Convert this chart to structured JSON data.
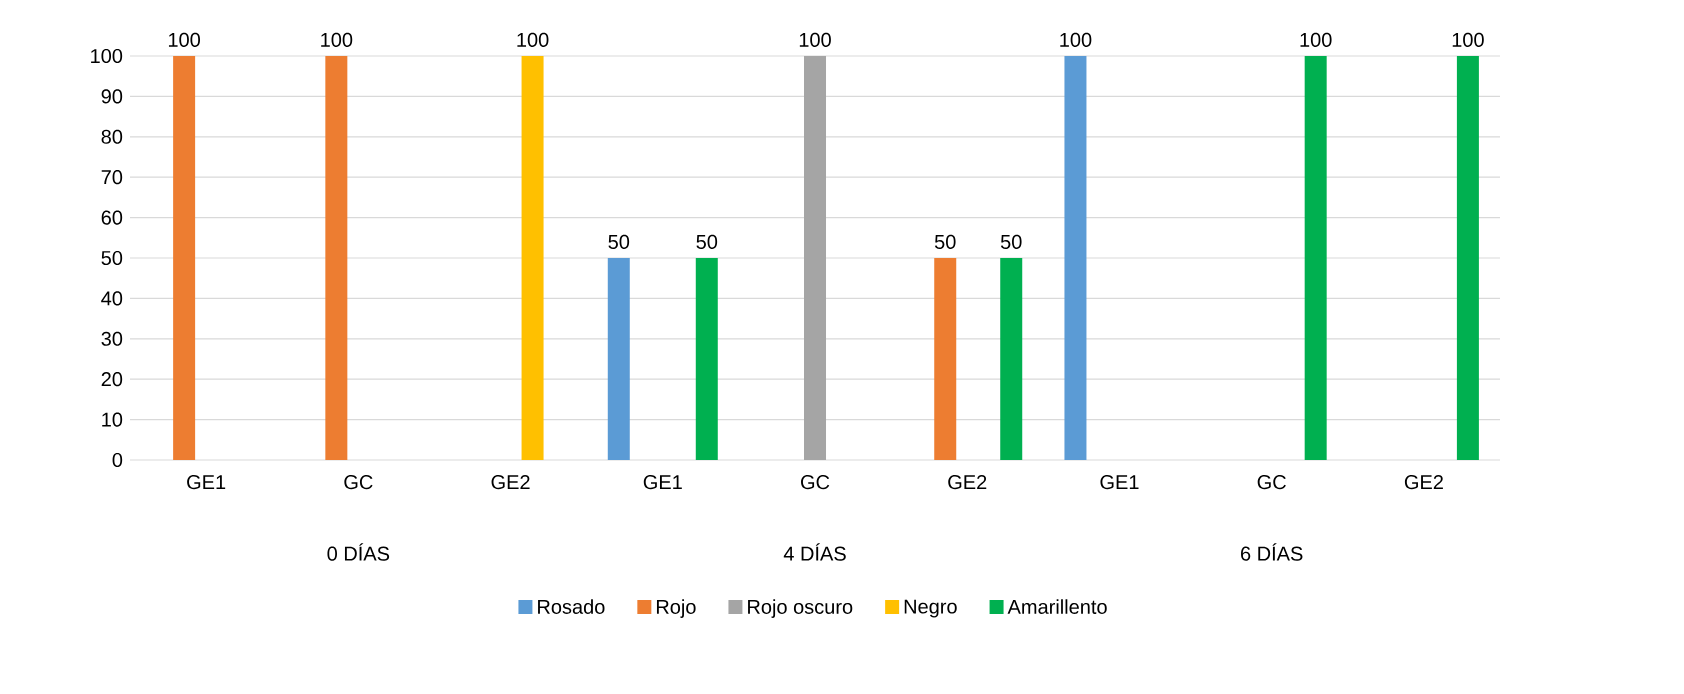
{
  "chart_data": {
    "type": "bar",
    "categories": [
      "GE1",
      "GC",
      "GE2",
      "GE1",
      "GC",
      "GE2",
      "GE1",
      "GC",
      "GE2"
    ],
    "annotations": [
      "0 DÍAS",
      "4 DÍAS",
      "6 DÍAS"
    ],
    "series": [
      {
        "name": "Rosado",
        "color": "#5b9bd5",
        "values": [
          null,
          null,
          null,
          50,
          null,
          null,
          100,
          null,
          null
        ]
      },
      {
        "name": "Rojo",
        "color": "#ed7d31",
        "values": [
          100,
          100,
          null,
          null,
          null,
          50,
          null,
          null,
          null
        ]
      },
      {
        "name": "Rojo oscuro",
        "color": "#a5a5a5",
        "values": [
          null,
          null,
          null,
          null,
          100,
          null,
          null,
          null,
          null
        ]
      },
      {
        "name": "Negro",
        "color": "#ffc000",
        "values": [
          null,
          null,
          100,
          null,
          null,
          null,
          null,
          null,
          null
        ]
      },
      {
        "name": "Amarillento",
        "color": "#00b050",
        "values": [
          null,
          null,
          null,
          50,
          null,
          50,
          null,
          100,
          100
        ]
      }
    ],
    "ylim": [
      0,
      100
    ],
    "yticks": [
      0,
      10,
      20,
      30,
      40,
      50,
      60,
      70,
      80,
      90,
      100
    ],
    "grid": "y",
    "legend": "bottom",
    "data_labels": true
  }
}
